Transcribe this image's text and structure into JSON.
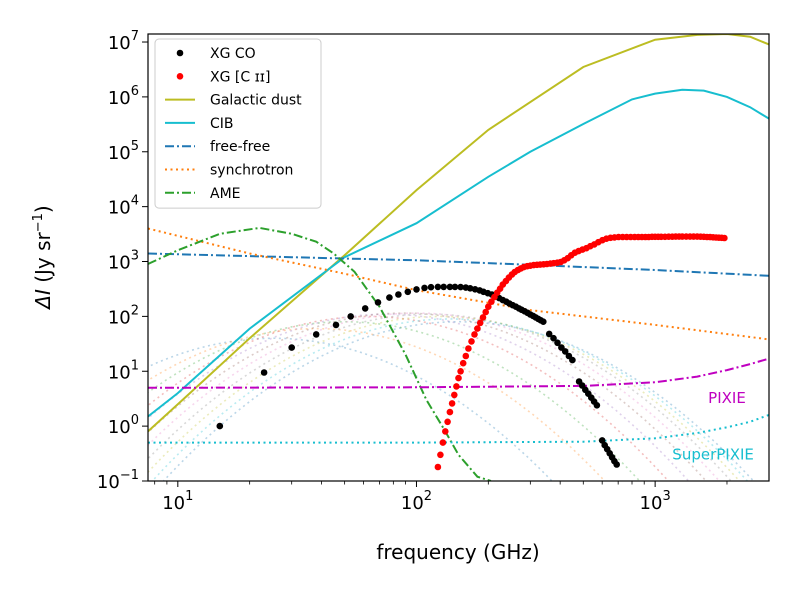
{
  "chart_data": {
    "type": "line",
    "xscale": "log",
    "yscale": "log",
    "xlim": [
      7.5,
      3000
    ],
    "ylim": [
      0.1,
      14000000
    ],
    "xlabel": "frequency (GHz)",
    "ylabel": {
      "prefix": "ΔI",
      "unit": " (Jy sr",
      "exp": "−1",
      "suffix": ")"
    },
    "x_ticks": [
      {
        "value": 10,
        "base": "10",
        "exp": "1"
      },
      {
        "value": 100,
        "base": "10",
        "exp": "2"
      },
      {
        "value": 1000,
        "base": "10",
        "exp": "3"
      }
    ],
    "y_ticks": [
      {
        "value": 0.1,
        "base": "10",
        "exp": "−1"
      },
      {
        "value": 1,
        "base": "10",
        "exp": "0"
      },
      {
        "value": 10,
        "base": "10",
        "exp": "1"
      },
      {
        "value": 100,
        "base": "10",
        "exp": "2"
      },
      {
        "value": 1000,
        "base": "10",
        "exp": "3"
      },
      {
        "value": 10000,
        "base": "10",
        "exp": "4"
      },
      {
        "value": 100000,
        "base": "10",
        "exp": "5"
      },
      {
        "value": 1000000,
        "base": "10",
        "exp": "6"
      },
      {
        "value": 10000000,
        "base": "10",
        "exp": "7"
      }
    ],
    "legend": {
      "position": "top-left",
      "entries": [
        {
          "label": "XG CO",
          "style": "marker",
          "color": "#000000"
        },
        {
          "label": "XG [C ɪɪ]",
          "style": "marker",
          "color": "#ff0000"
        },
        {
          "label": "Galactic dust",
          "style": "solid",
          "color": "#bcbd22"
        },
        {
          "label": "CIB",
          "style": "solid",
          "color": "#17becf"
        },
        {
          "label": "free-free",
          "style": "dashdot",
          "color": "#1f77b4"
        },
        {
          "label": "synchrotron",
          "style": "dotted",
          "color": "#ff7f0e"
        },
        {
          "label": "AME",
          "style": "dashdot",
          "color": "#2ca02c"
        }
      ]
    },
    "series": [
      {
        "name": "Galactic dust",
        "style": "solid",
        "color": "#bcbd22",
        "x": [
          7.5,
          10,
          20,
          50,
          100,
          200,
          500,
          1000,
          1500,
          2000,
          2500,
          3000
        ],
        "y": [
          0.8,
          2.5,
          40,
          1300,
          20000,
          250000,
          3500000,
          11000000,
          13500000,
          14000000,
          12500000,
          9000000
        ]
      },
      {
        "name": "CIB",
        "style": "solid",
        "color": "#17becf",
        "x": [
          7.5,
          10,
          20,
          50,
          100,
          200,
          300,
          500,
          800,
          1000,
          1300,
          1600,
          2000,
          2500,
          3000
        ],
        "y": [
          1.5,
          4,
          60,
          1200,
          5000,
          35000,
          100000,
          320000,
          900000,
          1150000,
          1350000,
          1300000,
          1000000,
          650000,
          400000
        ]
      },
      {
        "name": "free-free",
        "style": "dashdot",
        "color": "#1f77b4",
        "x": [
          7.5,
          30,
          100,
          300,
          1000,
          3000
        ],
        "y": [
          1400,
          1200,
          1050,
          870,
          700,
          550
        ]
      },
      {
        "name": "synchrotron",
        "style": "dotted",
        "color": "#ff7f0e",
        "x": [
          7.5,
          20,
          50,
          100,
          300,
          1000,
          3000
        ],
        "y": [
          4000,
          1400,
          600,
          300,
          130,
          70,
          38
        ]
      },
      {
        "name": "AME",
        "style": "dashdot",
        "color": "#2ca02c",
        "x": [
          7.5,
          10,
          15,
          22,
          30,
          38,
          45,
          55,
          70,
          90,
          110,
          130,
          150,
          180,
          205
        ],
        "y": [
          900,
          1600,
          3200,
          4100,
          3200,
          2300,
          1400,
          650,
          150,
          20,
          3,
          0.9,
          0.3,
          0.12,
          0.1
        ]
      },
      {
        "name": "PIXIE",
        "style": "dashdot",
        "color": "#c000c0",
        "x": [
          7.5,
          100,
          500,
          1000,
          1500,
          2000,
          2500,
          3000
        ],
        "y": [
          5,
          5.1,
          5.4,
          6.3,
          8,
          10.5,
          13.5,
          17
        ]
      },
      {
        "name": "SuperPIXIE",
        "style": "dotted",
        "color": "#17becf",
        "x": [
          7.5,
          100,
          500,
          1000,
          1500,
          2000,
          2500,
          3000
        ],
        "y": [
          0.5,
          0.5,
          0.52,
          0.6,
          0.75,
          0.95,
          1.2,
          1.6
        ]
      },
      {
        "name": "XG CO",
        "style": "marker",
        "color": "#000000",
        "x": [
          15,
          23,
          30,
          38,
          46,
          53,
          61,
          69,
          77,
          84,
          92,
          100,
          108,
          115,
          123,
          130,
          138,
          145,
          153,
          161,
          168,
          176,
          184,
          191,
          199,
          207,
          215,
          222,
          230,
          238,
          245,
          253,
          261,
          269,
          276,
          284,
          292,
          300,
          308,
          316,
          324,
          332,
          340,
          360,
          375,
          390,
          405,
          420,
          435,
          450,
          480,
          495,
          510,
          525,
          540,
          555,
          570,
          600,
          615,
          630,
          645,
          660,
          675,
          690
        ],
        "y": [
          1,
          9.5,
          27,
          47,
          70,
          100,
          140,
          180,
          220,
          250,
          280,
          310,
          330,
          340,
          345,
          345,
          345,
          345,
          342,
          335,
          325,
          312,
          298,
          280,
          265,
          250,
          232,
          215,
          198,
          185,
          172,
          160,
          150,
          140,
          132,
          124,
          116,
          108,
          102,
          96,
          90,
          85,
          80,
          48,
          40,
          33,
          27,
          23,
          19,
          16,
          6.5,
          5.5,
          4.6,
          3.9,
          3.3,
          2.8,
          2.4,
          0.55,
          0.45,
          0.38,
          0.32,
          0.27,
          0.23,
          0.2
        ]
      },
      {
        "name": "XG [C ɪɪ]",
        "style": "marker",
        "color": "#ff0000",
        "x": [
          123,
          126,
          129,
          132,
          135,
          138,
          141,
          144,
          147,
          150,
          153,
          157,
          161,
          165,
          170,
          175,
          180,
          185,
          190,
          195,
          200,
          206,
          212,
          218,
          224,
          230,
          237,
          244,
          251,
          258,
          266,
          274,
          282,
          291,
          300,
          310,
          320,
          330,
          341,
          352,
          364,
          376,
          389,
          402,
          416,
          430,
          445,
          461,
          478,
          496,
          515,
          535,
          556,
          578,
          601,
          625,
          650,
          676,
          703,
          731,
          760,
          790,
          820,
          850,
          880,
          910,
          940,
          970,
          1000,
          1030,
          1060,
          1100,
          1140,
          1180,
          1220,
          1260,
          1300,
          1350,
          1400,
          1450,
          1500,
          1550,
          1600,
          1650,
          1700,
          1750,
          1800,
          1850,
          1900,
          1950
        ],
        "y": [
          0.18,
          0.3,
          0.5,
          0.8,
          1.2,
          1.8,
          2.6,
          3.7,
          5.3,
          7.5,
          10,
          14,
          19,
          26,
          35,
          47,
          60,
          76,
          96,
          120,
          150,
          185,
          225,
          270,
          320,
          380,
          440,
          510,
          580,
          640,
          700,
          750,
          790,
          820,
          840,
          860,
          870,
          880,
          890,
          900,
          915,
          930,
          950,
          980,
          1050,
          1150,
          1300,
          1450,
          1550,
          1650,
          1750,
          1900,
          2050,
          2250,
          2450,
          2600,
          2700,
          2750,
          2800,
          2800,
          2800,
          2800,
          2800,
          2800,
          2800,
          2800,
          2800,
          2820,
          2820,
          2820,
          2820,
          2820,
          2830,
          2830,
          2840,
          2840,
          2850,
          2850,
          2850,
          2850,
          2840,
          2830,
          2820,
          2800,
          2780,
          2760,
          2740,
          2720,
          2700,
          2680
        ]
      }
    ],
    "background_curves": {
      "style": "dotted",
      "opacity": 0.3,
      "colors": [
        "#1f77b4",
        "#ff7f0e",
        "#2ca02c",
        "#d62728",
        "#9467bd",
        "#8c564b",
        "#e377c2",
        "#7f7f7f",
        "#bcbd22",
        "#17becf"
      ],
      "peaks": [
        {
          "x": 25,
          "y": 40
        },
        {
          "x": 38,
          "y": 60
        },
        {
          "x": 50,
          "y": 80
        },
        {
          "x": 63,
          "y": 100
        },
        {
          "x": 75,
          "y": 110
        },
        {
          "x": 88,
          "y": 115
        },
        {
          "x": 100,
          "y": 115
        },
        {
          "x": 113,
          "y": 110
        },
        {
          "x": 125,
          "y": 100
        },
        {
          "x": 138,
          "y": 90
        },
        {
          "x": 150,
          "y": 80
        }
      ]
    },
    "annotations": [
      {
        "text": "PIXIE",
        "x": 2000,
        "y": 3.2,
        "color": "#c000c0"
      },
      {
        "text": "SuperPIXIE",
        "x": 1750,
        "y": 0.3,
        "color": "#17becf"
      }
    ]
  }
}
